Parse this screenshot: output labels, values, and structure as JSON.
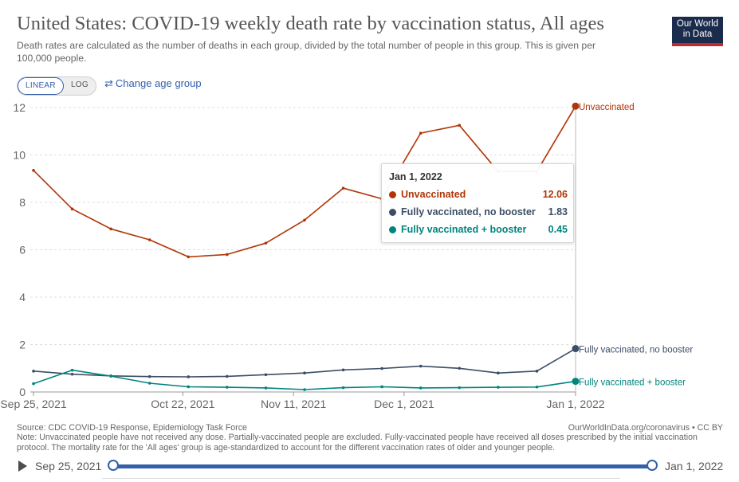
{
  "header": {
    "title": "United States: COVID-19 weekly death rate by vaccination status, All ages",
    "subtitle": "Death rates are calculated as the number of deaths in each group, divided by the total number of people in this group. This is given per 100,000 people.",
    "logo_line1": "Our World",
    "logo_line2": "in Data"
  },
  "controls": {
    "linear_label": "LINEAR",
    "log_label": "LOG",
    "age_icon": "⇄",
    "age_link": "Change age group"
  },
  "tooltip": {
    "date": "Jan 1, 2022",
    "rows": [
      {
        "name": "Unvaccinated",
        "value": "12.06",
        "color": "#b13507"
      },
      {
        "name": "Fully vaccinated, no booster",
        "value": "1.83",
        "color": "#3c4e66"
      },
      {
        "name": "Fully vaccinated + booster",
        "value": "0.45",
        "color": "#00847e"
      }
    ]
  },
  "footer": {
    "source": "Source: CDC COVID-19 Response, Epidemiology Task Force",
    "credit": "OurWorldInData.org/coronavirus • CC BY",
    "note": "Note: Unvaccinated people have not received any dose. Partially-vaccinated people are excluded. Fully-vaccinated people have received all doses prescribed by the initial vaccination protocol. The mortality rate for the 'All ages' group is age-standardized to account for the different vaccination rates of older and younger people."
  },
  "timeline": {
    "start": "Sep 25, 2021",
    "end": "Jan 1, 2022"
  },
  "chart_data": {
    "type": "line",
    "x": [
      "2021-09-25",
      "2021-10-02",
      "2021-10-09",
      "2021-10-16",
      "2021-10-23",
      "2021-10-30",
      "2021-11-06",
      "2021-11-13",
      "2021-11-20",
      "2021-11-27",
      "2021-12-04",
      "2021-12-11",
      "2021-12-18",
      "2021-12-25",
      "2022-01-01"
    ],
    "xticks": [
      "Sep 25, 2021",
      "Oct 22, 2021",
      "Nov 11, 2021",
      "Dec 1, 2021",
      "Jan 1, 2022"
    ],
    "xtick_dates": [
      "2021-09-25",
      "2021-10-22",
      "2021-11-11",
      "2021-12-01",
      "2022-01-01"
    ],
    "ylim": [
      0,
      12
    ],
    "yticks": [
      0,
      2,
      4,
      6,
      8,
      10,
      12
    ],
    "grid": "horizontal dashed",
    "series": [
      {
        "name": "Unvaccinated",
        "color": "#b13507",
        "values": [
          9.35,
          7.72,
          6.88,
          6.42,
          5.7,
          5.8,
          6.28,
          7.25,
          8.6,
          8.15,
          10.92,
          11.25,
          9.3,
          9.3,
          12.06
        ]
      },
      {
        "name": "Fully vaccinated, no booster",
        "color": "#3c4e66",
        "values": [
          0.88,
          0.75,
          0.68,
          0.65,
          0.64,
          0.66,
          0.73,
          0.8,
          0.93,
          0.99,
          1.09,
          1.0,
          0.8,
          0.88,
          1.83
        ]
      },
      {
        "name": "Fully vaccinated + booster",
        "color": "#00847e",
        "values": [
          0.35,
          0.92,
          0.67,
          0.37,
          0.22,
          0.2,
          0.17,
          0.1,
          0.18,
          0.22,
          0.17,
          0.18,
          0.2,
          0.21,
          0.45
        ]
      }
    ]
  }
}
